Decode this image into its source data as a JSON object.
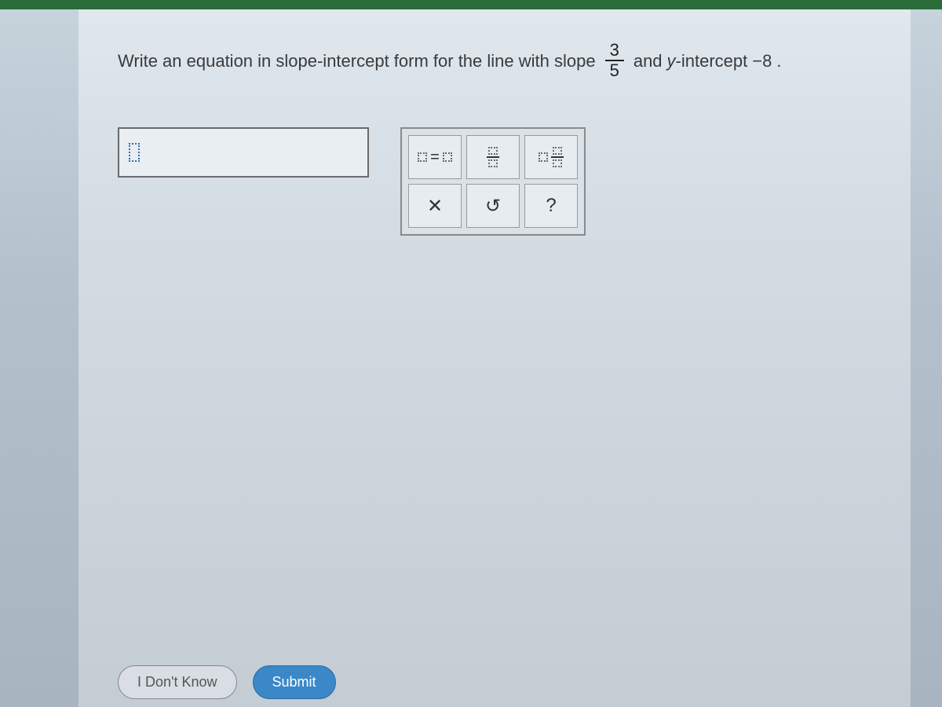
{
  "question": {
    "part1": "Write an equation in slope-intercept form for the line with slope",
    "slope_num": "3",
    "slope_den": "5",
    "part2": "and",
    "y_label": "y",
    "part3": "-intercept",
    "intercept": "−8",
    "part4": "."
  },
  "answer": {
    "value": ""
  },
  "tools": {
    "equation_symbol": "=",
    "clear": "✕",
    "undo": "↺",
    "help": "?"
  },
  "buttons": {
    "idk": "I Don't Know",
    "submit": "Submit"
  },
  "colors": {
    "top_bar": "#2a6b3a",
    "accent": "#3a88c8"
  }
}
